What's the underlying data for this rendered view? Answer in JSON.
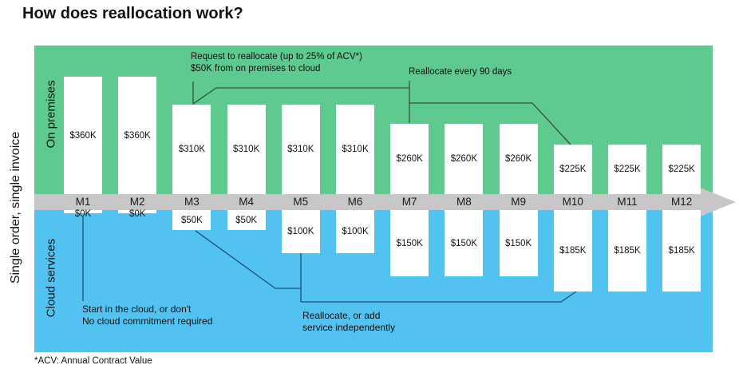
{
  "title": "How does reallocation work?",
  "footnote": "*ACV: Annual Contract Value",
  "left_axis_label": "Single order, single invoice",
  "regions": {
    "top_label": "On premises",
    "bottom_label": "Cloud services"
  },
  "annotations": {
    "request": [
      "Request to reallocate (up to 25% of ACV*)",
      "$50K from on premises to cloud"
    ],
    "every90": "Reallocate every 90 days",
    "start_cloud": [
      "Start in the cloud, or don't",
      "No cloud commitment required"
    ],
    "reallocate_add": [
      "Reallocate, or add",
      "service independently"
    ]
  },
  "colors": {
    "green": "#5fca90",
    "blue": "#52c2f1",
    "gray": "#c7c7c7",
    "top_line": "#35523f",
    "bottom_line": "#1f4e79"
  },
  "chart_data": {
    "type": "bar",
    "categories": [
      "M1",
      "M2",
      "M3",
      "M4",
      "M5",
      "M6",
      "M7",
      "M8",
      "M9",
      "M10",
      "M11",
      "M12"
    ],
    "series": [
      {
        "name": "On premises",
        "values": [
          360,
          360,
          310,
          310,
          310,
          310,
          260,
          260,
          260,
          225,
          225,
          225
        ]
      },
      {
        "name": "Cloud services",
        "values": [
          0,
          0,
          50,
          50,
          100,
          100,
          150,
          150,
          150,
          185,
          185,
          185
        ]
      }
    ],
    "unit": "$K",
    "value_label_format": "$<value>K",
    "xlabel": "Months M1–M12 on a timeline arrow",
    "legend_position": "none",
    "grid": false
  }
}
